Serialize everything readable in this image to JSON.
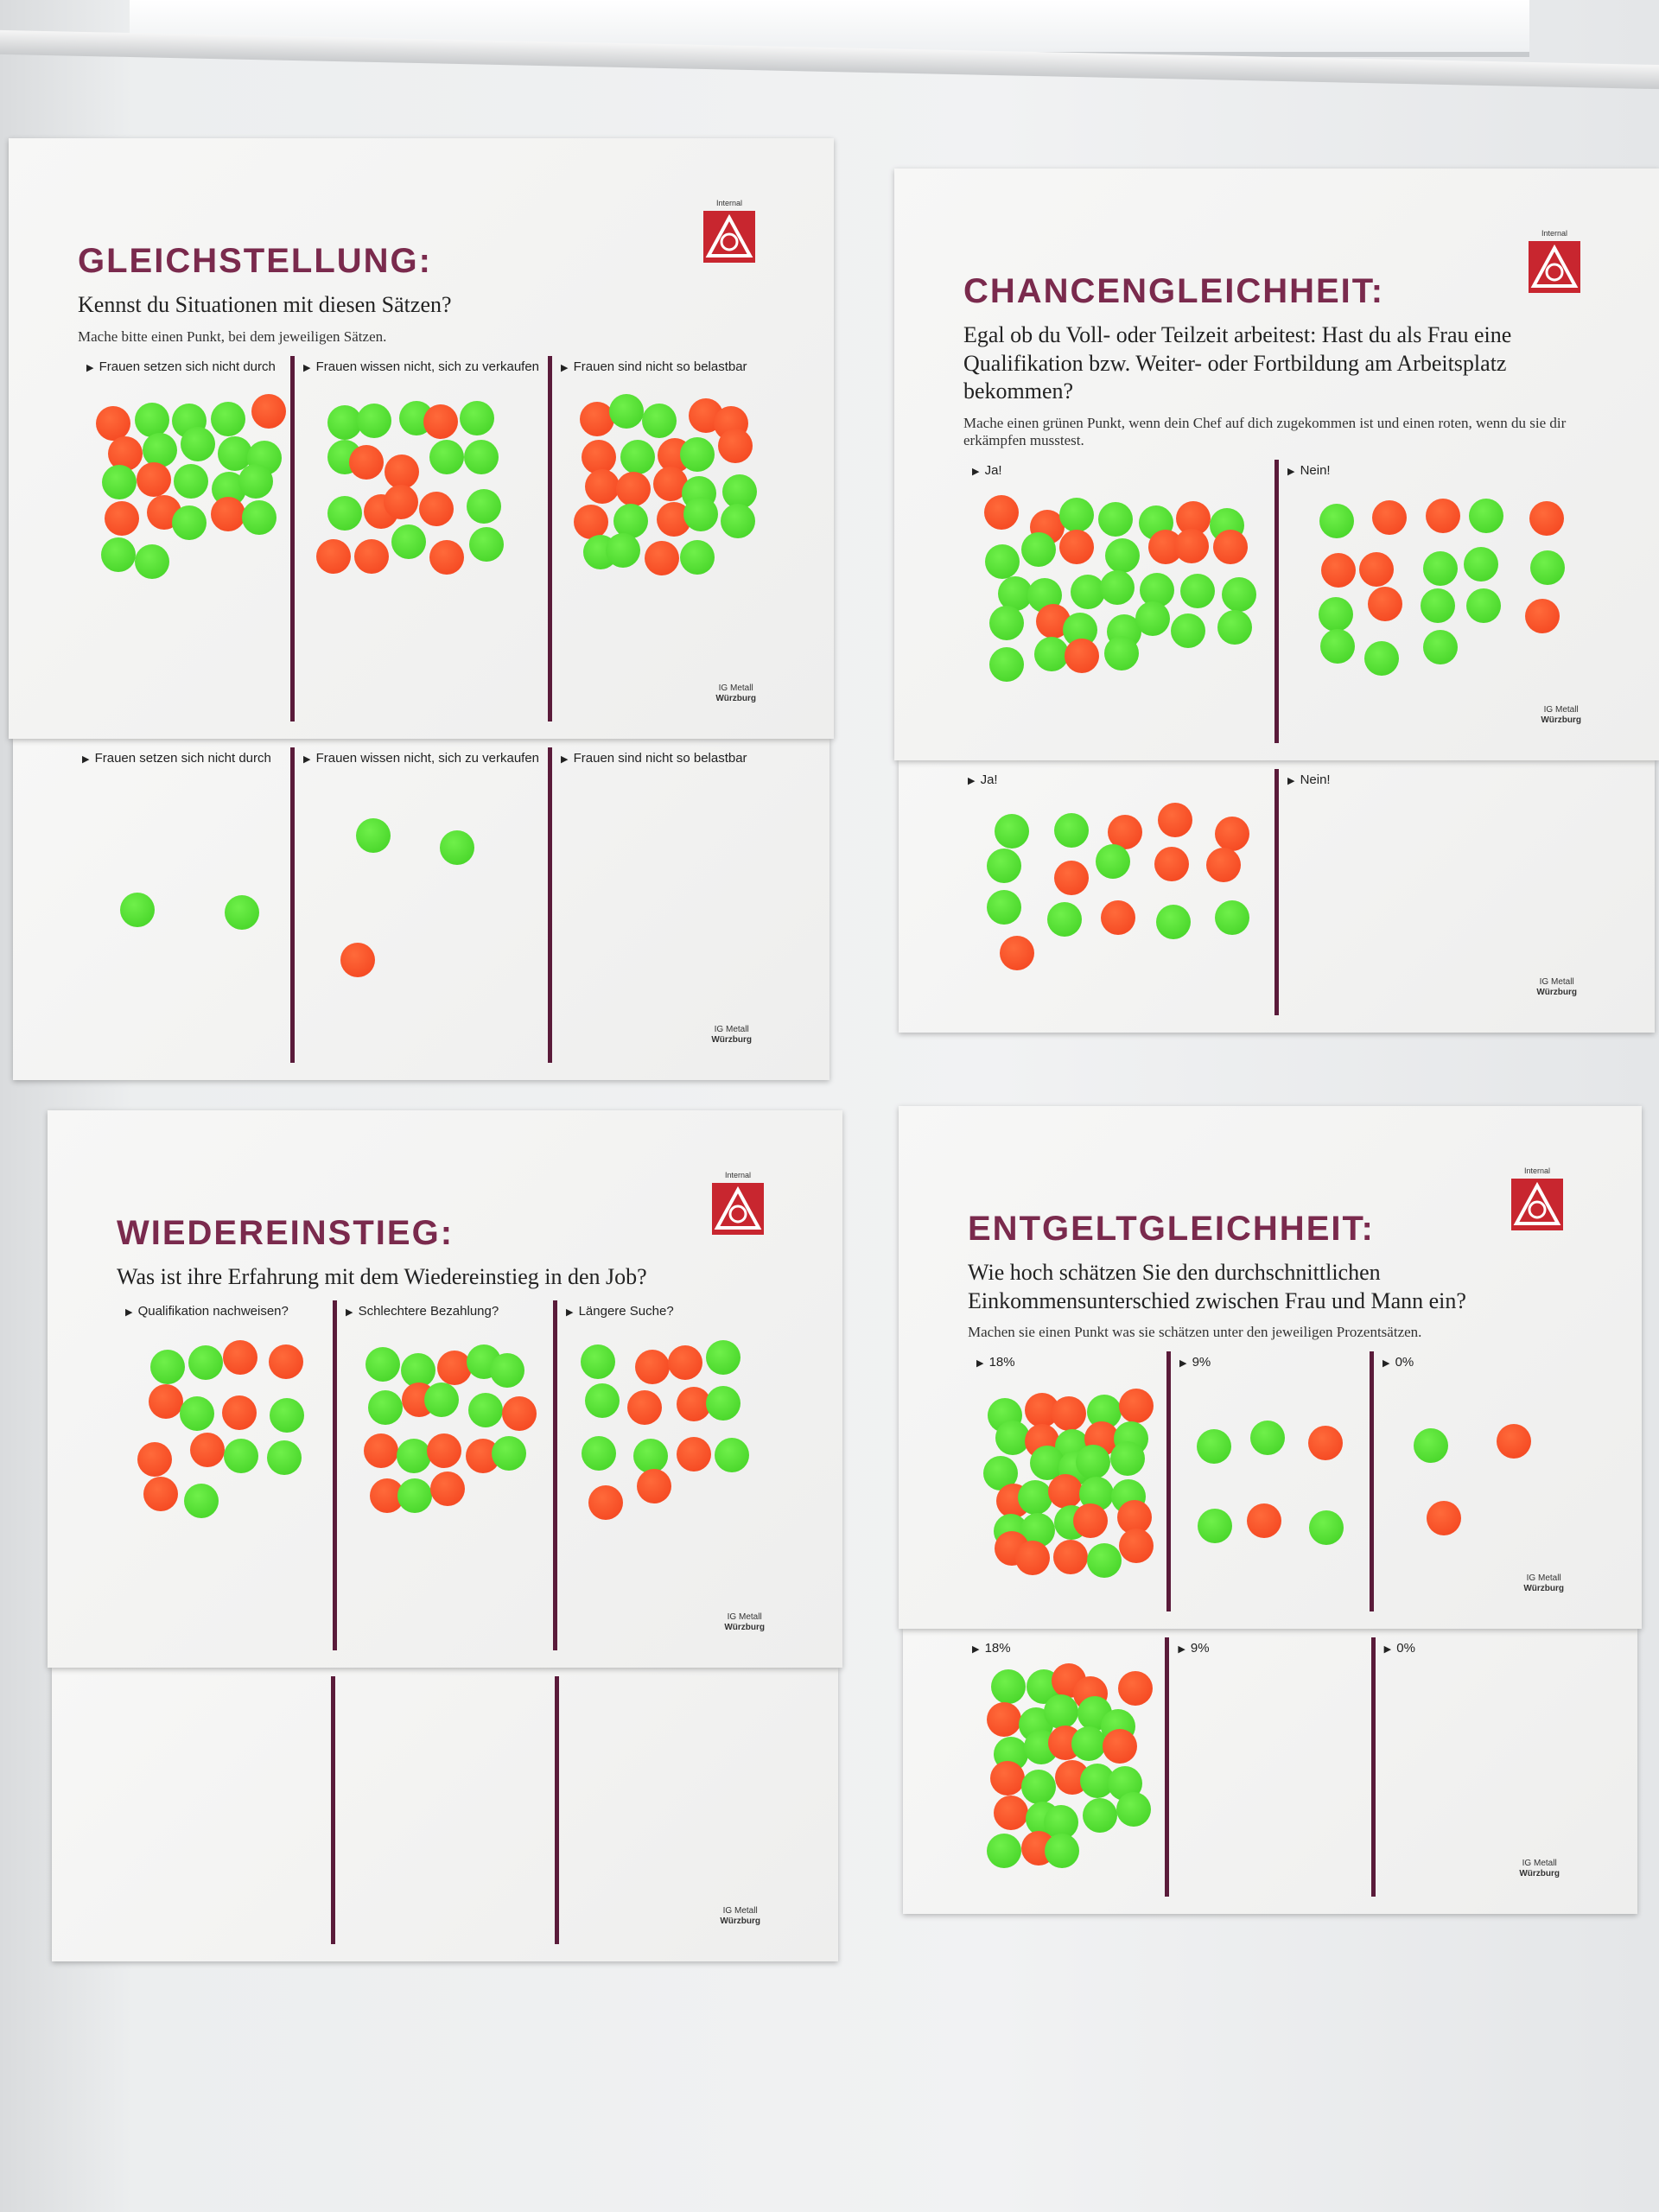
{
  "posters": [
    {
      "label": "Internal",
      "title": "GLEICHSTELLUNG:",
      "question": "Kennst du Situationen mit diesen Sätzen?",
      "instruction": "Mache bitte einen Punkt, bei dem jeweiligen Sätzen.",
      "columns": [
        "Frauen setzen sich nicht durch",
        "Frauen wissen nicht, sich zu verkaufen",
        "Frauen sind nicht so belastbar"
      ],
      "footer": [
        "IG Metall",
        "Würzburg"
      ],
      "sheet": {
        "columns": [
          "Frauen setzen sich nicht durch",
          "Frauen wissen nicht, sich zu verkaufen",
          "Frauen sind nicht so belastbar"
        ],
        "footer": [
          "IG Metall",
          "Würzburg"
        ]
      }
    },
    {
      "label": "Internal",
      "title": "CHANCENGLEICHHEIT:",
      "question": "Egal ob du Voll- oder Teilzeit arbeitest: Hast du als Frau eine Qualifikation bzw. Weiter- oder Fortbildung am Arbeitsplatz bekommen?",
      "instruction": "Mache einen grünen Punkt, wenn dein Chef auf dich zugekommen ist und einen roten, wenn du sie dir erkämpfen musstest.",
      "columns": [
        "Ja!",
        "Nein!"
      ],
      "footer": [
        "IG Metall",
        "Würzburg"
      ],
      "sheet": {
        "columns": [
          "Ja!",
          "Nein!"
        ],
        "footer": [
          "IG Metall",
          "Würzburg"
        ]
      }
    },
    {
      "label": "Internal",
      "title": "WIEDEREINSTIEG:",
      "question": "Was ist ihre Erfahrung mit dem Wiedereinstieg in den Job?",
      "instruction": null,
      "columns": [
        "Qualifikation nachweisen?",
        "Schlechtere Bezahlung?",
        "Längere Suche?"
      ],
      "footer": [
        "IG Metall",
        "Würzburg"
      ],
      "sheet": {
        "columns": [],
        "footer": [
          "IG Metall",
          "Würzburg"
        ]
      }
    },
    {
      "label": "Internal",
      "title": "ENTGELTGLEICHHEIT:",
      "question": "Wie hoch schätzen Sie den durchschnittlichen Einkommensunterschied zwischen Frau und Mann ein?",
      "instruction": "Machen sie einen Punkt was sie schätzen unter den jeweiligen Prozentsätzen.",
      "columns": [
        "18%",
        "9%",
        "0%"
      ],
      "footer": [
        "IG Metall",
        "Würzburg"
      ],
      "sheet": {
        "columns": [
          "18%",
          "9%",
          "0%"
        ],
        "footer": [
          "IG Metall",
          "Würzburg"
        ]
      }
    }
  ]
}
